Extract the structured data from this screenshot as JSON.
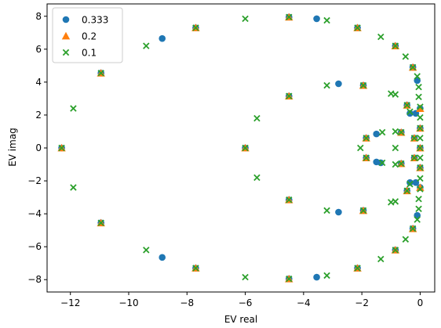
{
  "chart_data": {
    "type": "scatter",
    "title": "",
    "xlabel": "EV real",
    "ylabel": "EV imag",
    "xlim": [
      -12.8,
      0.5
    ],
    "ylim": [
      -8.75,
      8.75
    ],
    "xticks": [
      -12,
      -10,
      -8,
      -6,
      -4,
      -2,
      0
    ],
    "yticks": [
      -8,
      -6,
      -4,
      -2,
      0,
      2,
      4,
      6,
      8
    ],
    "grid": false,
    "legend_position": "top-left",
    "series": [
      {
        "name": "0.333",
        "marker": "circle",
        "color": "#1f77b4",
        "points": [
          [
            -12.3,
            0
          ],
          [
            -10.95,
            4.55
          ],
          [
            -10.95,
            -4.55
          ],
          [
            -8.85,
            6.65
          ],
          [
            -8.85,
            -6.65
          ],
          [
            -7.7,
            7.3
          ],
          [
            -7.7,
            -7.3
          ],
          [
            -6.0,
            0
          ],
          [
            -4.5,
            3.15
          ],
          [
            -4.5,
            -3.15
          ],
          [
            -4.5,
            7.95
          ],
          [
            -4.5,
            -7.95
          ],
          [
            -3.55,
            7.85
          ],
          [
            -3.55,
            -7.85
          ],
          [
            -2.8,
            3.9
          ],
          [
            -2.8,
            -3.9
          ],
          [
            -2.15,
            7.3
          ],
          [
            -2.15,
            -7.3
          ],
          [
            -1.95,
            3.8
          ],
          [
            -1.95,
            -3.8
          ],
          [
            -1.85,
            0.6
          ],
          [
            -1.85,
            -0.6
          ],
          [
            -1.5,
            0.85
          ],
          [
            -1.5,
            -0.85
          ],
          [
            -1.35,
            -0.9
          ],
          [
            -0.85,
            6.2
          ],
          [
            -0.85,
            -6.2
          ],
          [
            -0.65,
            0.95
          ],
          [
            -0.65,
            -0.95
          ],
          [
            -0.45,
            2.6
          ],
          [
            -0.45,
            -2.6
          ],
          [
            -0.25,
            4.9
          ],
          [
            -0.25,
            -4.9
          ],
          [
            -0.35,
            2.1
          ],
          [
            -0.35,
            -2.1
          ],
          [
            -0.1,
            4.1
          ],
          [
            -0.1,
            -4.1
          ],
          [
            -0.15,
            2.1
          ],
          [
            -0.15,
            -2.1
          ],
          [
            -0.2,
            0.6
          ],
          [
            -0.2,
            -0.6
          ],
          [
            0,
            0
          ],
          [
            0,
            1.2
          ],
          [
            0,
            -1.2
          ],
          [
            0,
            2.4
          ],
          [
            0,
            -2.4
          ]
        ]
      },
      {
        "name": "0.2",
        "marker": "triangle",
        "color": "#ff7f0e",
        "points": [
          [
            -12.3,
            0
          ],
          [
            -10.95,
            4.55
          ],
          [
            -10.95,
            -4.55
          ],
          [
            -7.7,
            7.3
          ],
          [
            -7.7,
            -7.3
          ],
          [
            -6.0,
            0
          ],
          [
            -4.5,
            3.15
          ],
          [
            -4.5,
            -3.15
          ],
          [
            -4.5,
            7.95
          ],
          [
            -4.5,
            -7.95
          ],
          [
            -2.15,
            7.3
          ],
          [
            -2.15,
            -7.3
          ],
          [
            -1.95,
            3.8
          ],
          [
            -1.95,
            -3.8
          ],
          [
            -1.85,
            0.6
          ],
          [
            -1.85,
            -0.6
          ],
          [
            -0.85,
            6.2
          ],
          [
            -0.85,
            -6.2
          ],
          [
            -0.65,
            0.95
          ],
          [
            -0.65,
            -0.95
          ],
          [
            -0.45,
            2.6
          ],
          [
            -0.45,
            -2.6
          ],
          [
            -0.25,
            4.9
          ],
          [
            -0.25,
            -4.9
          ],
          [
            -0.2,
            0.6
          ],
          [
            -0.2,
            -0.6
          ],
          [
            0,
            0
          ],
          [
            0,
            1.2
          ],
          [
            0,
            -1.2
          ],
          [
            0,
            2.4
          ],
          [
            0,
            -2.4
          ]
        ]
      },
      {
        "name": "0.1",
        "marker": "x",
        "color": "#2ca02c",
        "points": [
          [
            -12.3,
            0
          ],
          [
            -11.9,
            2.4
          ],
          [
            -11.9,
            -2.4
          ],
          [
            -10.95,
            4.55
          ],
          [
            -10.95,
            -4.55
          ],
          [
            -9.4,
            6.2
          ],
          [
            -9.4,
            -6.2
          ],
          [
            -7.7,
            7.3
          ],
          [
            -7.7,
            -7.3
          ],
          [
            -6.0,
            7.85
          ],
          [
            -6.0,
            -7.85
          ],
          [
            -6.0,
            0
          ],
          [
            -5.6,
            1.8
          ],
          [
            -5.6,
            -1.8
          ],
          [
            -4.5,
            3.15
          ],
          [
            -4.5,
            -3.15
          ],
          [
            -4.5,
            7.95
          ],
          [
            -4.5,
            -7.95
          ],
          [
            -3.2,
            7.75
          ],
          [
            -3.2,
            -7.75
          ],
          [
            -3.2,
            3.8
          ],
          [
            -3.2,
            -3.8
          ],
          [
            -2.15,
            7.3
          ],
          [
            -2.15,
            -7.3
          ],
          [
            -1.95,
            3.8
          ],
          [
            -1.95,
            -3.8
          ],
          [
            -2.05,
            0
          ],
          [
            -1.85,
            0.6
          ],
          [
            -1.85,
            -0.6
          ],
          [
            -1.35,
            6.75
          ],
          [
            -1.35,
            -6.75
          ],
          [
            -1.3,
            0.95
          ],
          [
            -1.3,
            -0.9
          ],
          [
            -1.0,
            3.3
          ],
          [
            -1.0,
            -3.3
          ],
          [
            -0.85,
            6.2
          ],
          [
            -0.85,
            -6.2
          ],
          [
            -0.65,
            0.95
          ],
          [
            -0.65,
            -0.95
          ],
          [
            -0.85,
            1.0
          ],
          [
            -0.85,
            -1.0
          ],
          [
            -0.85,
            3.25
          ],
          [
            -0.85,
            -3.25
          ],
          [
            -0.85,
            0
          ],
          [
            -0.5,
            5.55
          ],
          [
            -0.5,
            -5.55
          ],
          [
            -0.45,
            2.6
          ],
          [
            -0.45,
            -2.6
          ],
          [
            -0.25,
            4.9
          ],
          [
            -0.25,
            -4.9
          ],
          [
            -0.35,
            2.2
          ],
          [
            -0.35,
            -2.2
          ],
          [
            -0.2,
            0.6
          ],
          [
            -0.2,
            -0.6
          ],
          [
            -0.1,
            4.35
          ],
          [
            -0.1,
            -4.35
          ],
          [
            -0.05,
            3.7
          ],
          [
            -0.05,
            -3.7
          ],
          [
            -0.05,
            3.1
          ],
          [
            -0.05,
            -3.1
          ],
          [
            0,
            2.5
          ],
          [
            0,
            -2.5
          ],
          [
            0,
            1.85
          ],
          [
            0,
            -1.85
          ],
          [
            0,
            1.2
          ],
          [
            0,
            -1.2
          ],
          [
            0,
            0.6
          ],
          [
            0,
            -0.6
          ],
          [
            0,
            0
          ]
        ]
      }
    ]
  }
}
